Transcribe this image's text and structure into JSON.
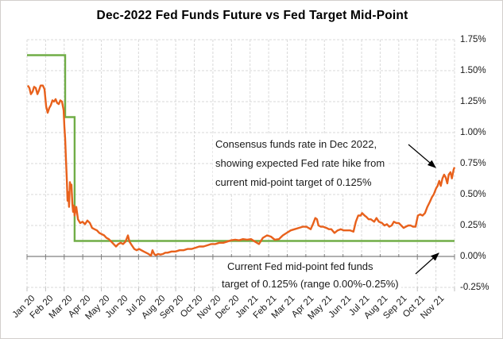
{
  "title": "Dec-2022 Fed Funds Future vs Fed Target Mid-Point",
  "colors": {
    "future_line": "#E8611C",
    "target_line": "#70AD47",
    "gridline": "#D9D9D9",
    "zero_axis": "#808080",
    "bottom_ticks": "#BFBFBF",
    "arrow": "#000000",
    "text": "#1A1A1A"
  },
  "chart_data": {
    "type": "line",
    "title": "Dec-2022 Fed Funds Future vs Fed Target Mid-Point",
    "x_tick_labels": [
      "Jan 20",
      "Feb 20",
      "Mar 20",
      "Apr 20",
      "May 20",
      "Jun 20",
      "Jul 20",
      "Aug 20",
      "Sep 20",
      "Oct 20",
      "Nov 20",
      "Dec 20",
      "Jan 21",
      "Feb 21",
      "Mar 21",
      "Apr 21",
      "May 21",
      "Jun 21",
      "Jul 21",
      "Aug 21",
      "Sep 21",
      "Oct 21",
      "Nov 21"
    ],
    "y_tick_labels": [
      "1.75%",
      "1.50%",
      "1.25%",
      "1.00%",
      "0.75%",
      "0.50%",
      "0.25%",
      "0.00%",
      "-0.25%"
    ],
    "ylim": [
      -0.25,
      1.75
    ],
    "xlim_months_since_jan2020": [
      0,
      23
    ],
    "y_format": "percent",
    "grid": "dashed light-gray, both axes; dark solid category axis at 0.00%",
    "legend": "none",
    "series": [
      {
        "name": "Fed Target Mid-Point",
        "color": "#70AD47",
        "points": [
          [
            0,
            1.625
          ],
          [
            2.05,
            1.625
          ],
          [
            2.05,
            1.125
          ],
          [
            2.56,
            1.125
          ],
          [
            2.56,
            0.125
          ],
          [
            23,
            0.125
          ]
        ]
      },
      {
        "name": "Dec-2022 Fed Funds Future implied rate",
        "color": "#E8611C",
        "points": [
          [
            0.04,
            1.38
          ],
          [
            0.13,
            1.36
          ],
          [
            0.21,
            1.31
          ],
          [
            0.3,
            1.33
          ],
          [
            0.38,
            1.37
          ],
          [
            0.47,
            1.36
          ],
          [
            0.56,
            1.31
          ],
          [
            0.64,
            1.34
          ],
          [
            0.73,
            1.38
          ],
          [
            0.85,
            1.38
          ],
          [
            0.94,
            1.35
          ],
          [
            1.03,
            1.21
          ],
          [
            1.11,
            1.16
          ],
          [
            1.2,
            1.2
          ],
          [
            1.28,
            1.22
          ],
          [
            1.37,
            1.26
          ],
          [
            1.45,
            1.25
          ],
          [
            1.54,
            1.27
          ],
          [
            1.62,
            1.24
          ],
          [
            1.71,
            1.23
          ],
          [
            1.79,
            1.26
          ],
          [
            1.88,
            1.25
          ],
          [
            1.97,
            1.18
          ],
          [
            2.01,
            1.05
          ],
          [
            2.05,
            0.95
          ],
          [
            2.09,
            0.8
          ],
          [
            2.14,
            0.62
          ],
          [
            2.18,
            0.45
          ],
          [
            2.22,
            0.52
          ],
          [
            2.26,
            0.4
          ],
          [
            2.31,
            0.6
          ],
          [
            2.35,
            0.55
          ],
          [
            2.39,
            0.58
          ],
          [
            2.44,
            0.42
          ],
          [
            2.48,
            0.36
          ],
          [
            2.52,
            0.41
          ],
          [
            2.56,
            0.33
          ],
          [
            2.61,
            0.38
          ],
          [
            2.65,
            0.4
          ],
          [
            2.74,
            0.3
          ],
          [
            2.86,
            0.27
          ],
          [
            2.99,
            0.28
          ],
          [
            3.12,
            0.26
          ],
          [
            3.25,
            0.29
          ],
          [
            3.38,
            0.27
          ],
          [
            3.5,
            0.23
          ],
          [
            3.63,
            0.22
          ],
          [
            3.76,
            0.21
          ],
          [
            3.89,
            0.19
          ],
          [
            4.02,
            0.18
          ],
          [
            4.15,
            0.17
          ],
          [
            4.27,
            0.15
          ],
          [
            4.4,
            0.14
          ],
          [
            4.53,
            0.12
          ],
          [
            4.66,
            0.1
          ],
          [
            4.79,
            0.08
          ],
          [
            4.91,
            0.1
          ],
          [
            5.04,
            0.11
          ],
          [
            5.17,
            0.1
          ],
          [
            5.3,
            0.12
          ],
          [
            5.43,
            0.17
          ],
          [
            5.51,
            0.12
          ],
          [
            5.64,
            0.09
          ],
          [
            5.77,
            0.06
          ],
          [
            5.9,
            0.05
          ],
          [
            6.03,
            0.06
          ],
          [
            6.15,
            0.05
          ],
          [
            6.28,
            0.04
          ],
          [
            6.41,
            0.03
          ],
          [
            6.54,
            0.02
          ],
          [
            6.67,
            0.005
          ],
          [
            6.75,
            0.05
          ],
          [
            6.84,
            0.02
          ],
          [
            6.92,
            0.01
          ],
          [
            7.05,
            0.02
          ],
          [
            7.18,
            0.015
          ],
          [
            7.31,
            0.02
          ],
          [
            7.44,
            0.03
          ],
          [
            7.56,
            0.03
          ],
          [
            7.78,
            0.04
          ],
          [
            7.99,
            0.04
          ],
          [
            8.21,
            0.05
          ],
          [
            8.42,
            0.05
          ],
          [
            8.63,
            0.06
          ],
          [
            8.85,
            0.06
          ],
          [
            9.06,
            0.07
          ],
          [
            9.27,
            0.08
          ],
          [
            9.49,
            0.08
          ],
          [
            9.7,
            0.09
          ],
          [
            9.91,
            0.1
          ],
          [
            10.13,
            0.1
          ],
          [
            10.34,
            0.11
          ],
          [
            10.56,
            0.11
          ],
          [
            10.77,
            0.12
          ],
          [
            10.98,
            0.13
          ],
          [
            11.2,
            0.135
          ],
          [
            11.41,
            0.13
          ],
          [
            11.62,
            0.14
          ],
          [
            11.84,
            0.135
          ],
          [
            12.05,
            0.14
          ],
          [
            12.26,
            0.12
          ],
          [
            12.48,
            0.1
          ],
          [
            12.69,
            0.15
          ],
          [
            12.91,
            0.17
          ],
          [
            13.12,
            0.16
          ],
          [
            13.33,
            0.135
          ],
          [
            13.55,
            0.14
          ],
          [
            13.76,
            0.17
          ],
          [
            13.97,
            0.19
          ],
          [
            14.19,
            0.21
          ],
          [
            14.4,
            0.22
          ],
          [
            14.62,
            0.23
          ],
          [
            14.83,
            0.24
          ],
          [
            15.04,
            0.24
          ],
          [
            15.26,
            0.22
          ],
          [
            15.38,
            0.26
          ],
          [
            15.51,
            0.31
          ],
          [
            15.6,
            0.3
          ],
          [
            15.68,
            0.25
          ],
          [
            15.81,
            0.24
          ],
          [
            15.94,
            0.24
          ],
          [
            16.11,
            0.23
          ],
          [
            16.24,
            0.22
          ],
          [
            16.37,
            0.22
          ],
          [
            16.54,
            0.19
          ],
          [
            16.71,
            0.21
          ],
          [
            16.88,
            0.22
          ],
          [
            17.05,
            0.21
          ],
          [
            17.22,
            0.21
          ],
          [
            17.39,
            0.21
          ],
          [
            17.56,
            0.2
          ],
          [
            17.69,
            0.28
          ],
          [
            17.82,
            0.33
          ],
          [
            17.95,
            0.33
          ],
          [
            18.03,
            0.35
          ],
          [
            18.16,
            0.33
          ],
          [
            18.25,
            0.32
          ],
          [
            18.38,
            0.3
          ],
          [
            18.5,
            0.3
          ],
          [
            18.68,
            0.28
          ],
          [
            18.8,
            0.31
          ],
          [
            18.93,
            0.28
          ],
          [
            19.1,
            0.27
          ],
          [
            19.23,
            0.25
          ],
          [
            19.36,
            0.26
          ],
          [
            19.49,
            0.24
          ],
          [
            19.62,
            0.25
          ],
          [
            19.74,
            0.28
          ],
          [
            19.87,
            0.27
          ],
          [
            20.0,
            0.27
          ],
          [
            20.13,
            0.25
          ],
          [
            20.26,
            0.23
          ],
          [
            20.38,
            0.24
          ],
          [
            20.51,
            0.25
          ],
          [
            20.64,
            0.25
          ],
          [
            20.77,
            0.24
          ],
          [
            20.9,
            0.24
          ],
          [
            21.03,
            0.33
          ],
          [
            21.15,
            0.34
          ],
          [
            21.28,
            0.33
          ],
          [
            21.41,
            0.35
          ],
          [
            21.54,
            0.4
          ],
          [
            21.67,
            0.44
          ],
          [
            21.79,
            0.48
          ],
          [
            21.88,
            0.5
          ],
          [
            22.01,
            0.55
          ],
          [
            22.09,
            0.57
          ],
          [
            22.18,
            0.61
          ],
          [
            22.26,
            0.57
          ],
          [
            22.35,
            0.63
          ],
          [
            22.44,
            0.66
          ],
          [
            22.52,
            0.64
          ],
          [
            22.61,
            0.59
          ],
          [
            22.69,
            0.66
          ],
          [
            22.78,
            0.68
          ],
          [
            22.86,
            0.63
          ],
          [
            22.95,
            0.7
          ],
          [
            23.0,
            0.72
          ]
        ]
      }
    ],
    "annotations": [
      {
        "text_lines": [
          "Consensus funds rate in Dec 2022,",
          "showing expected Fed rate hike from",
          "current mid-point target of 0.125%"
        ],
        "arrow_points_to": "rising end of futures line (~0.70% in Nov 2021)"
      },
      {
        "text_lines": [
          "Current Fed mid-point fed funds",
          "target of 0.125% (range 0.00%-0.25%)"
        ],
        "arrow_points_to": "fed target mid-point line at 0.125%"
      }
    ]
  }
}
